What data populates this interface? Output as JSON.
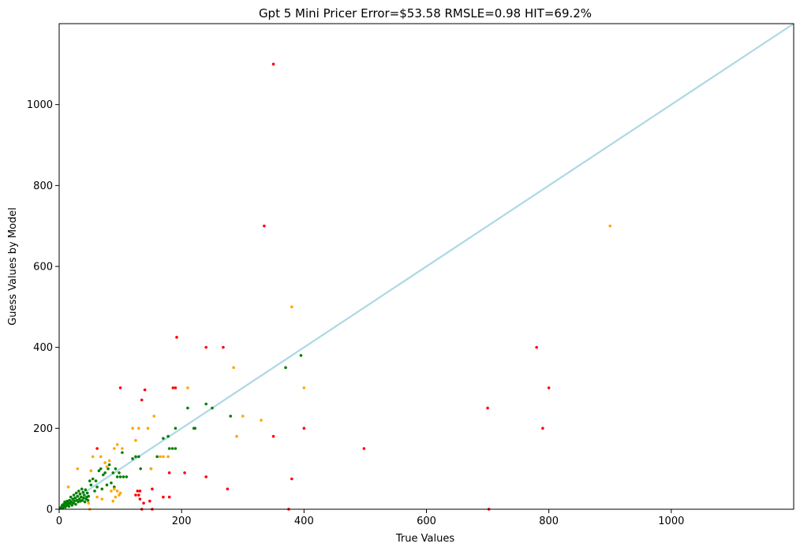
{
  "chart_data": {
    "type": "scatter",
    "title": "Gpt 5 Mini Pricer Error=$53.58  RMSLE=0.98  HIT=69.2%",
    "xlabel": "True Values",
    "ylabel": "Guess Values by Model",
    "xlim": [
      0,
      1200
    ],
    "ylim": [
      0,
      1200
    ],
    "xticks": [
      0,
      200,
      400,
      600,
      800,
      1000
    ],
    "yticks": [
      0,
      200,
      400,
      600,
      800,
      1000
    ],
    "grid": false,
    "reference_line": {
      "from": [
        0,
        0
      ],
      "to": [
        1200,
        1200
      ],
      "color": "#add8e6"
    },
    "colors": {
      "green": "#008000",
      "orange": "#ffa500",
      "red": "#ff0000"
    },
    "series": [
      {
        "color": "green",
        "points": [
          [
            2,
            3
          ],
          [
            4,
            6
          ],
          [
            5,
            10
          ],
          [
            6,
            4
          ],
          [
            7,
            12
          ],
          [
            8,
            8
          ],
          [
            9,
            18
          ],
          [
            10,
            5
          ],
          [
            11,
            14
          ],
          [
            12,
            9
          ],
          [
            13,
            20
          ],
          [
            14,
            12
          ],
          [
            15,
            16
          ],
          [
            16,
            7
          ],
          [
            17,
            22
          ],
          [
            18,
            14
          ],
          [
            19,
            30
          ],
          [
            20,
            18
          ],
          [
            21,
            10
          ],
          [
            22,
            25
          ],
          [
            23,
            15
          ],
          [
            24,
            35
          ],
          [
            25,
            20
          ],
          [
            26,
            28
          ],
          [
            27,
            12
          ],
          [
            28,
            40
          ],
          [
            29,
            22
          ],
          [
            30,
            32
          ],
          [
            31,
            18
          ],
          [
            32,
            45
          ],
          [
            33,
            25
          ],
          [
            34,
            38
          ],
          [
            35,
            20
          ],
          [
            36,
            30
          ],
          [
            37,
            50
          ],
          [
            38,
            22
          ],
          [
            39,
            42
          ],
          [
            40,
            28
          ],
          [
            41,
            35
          ],
          [
            42,
            18
          ],
          [
            43,
            48
          ],
          [
            44,
            25
          ],
          [
            45,
            30
          ],
          [
            46,
            40
          ],
          [
            47,
            22
          ],
          [
            48,
            32
          ],
          [
            50,
            70
          ],
          [
            52,
            60
          ],
          [
            55,
            75
          ],
          [
            58,
            45
          ],
          [
            60,
            70
          ],
          [
            62,
            55
          ],
          [
            65,
            95
          ],
          [
            68,
            100
          ],
          [
            70,
            50
          ],
          [
            72,
            85
          ],
          [
            75,
            90
          ],
          [
            78,
            60
          ],
          [
            80,
            100
          ],
          [
            82,
            110
          ],
          [
            85,
            65
          ],
          [
            88,
            90
          ],
          [
            90,
            55
          ],
          [
            92,
            100
          ],
          [
            95,
            80
          ],
          [
            98,
            90
          ],
          [
            100,
            80
          ],
          [
            103,
            140
          ],
          [
            105,
            80
          ],
          [
            110,
            80
          ],
          [
            120,
            125
          ],
          [
            125,
            130
          ],
          [
            130,
            130
          ],
          [
            133,
            100
          ],
          [
            150,
            100
          ],
          [
            160,
            130
          ],
          [
            170,
            175
          ],
          [
            178,
            180
          ],
          [
            180,
            150
          ],
          [
            185,
            150
          ],
          [
            190,
            150
          ],
          [
            190,
            200
          ],
          [
            210,
            250
          ],
          [
            220,
            200
          ],
          [
            222,
            200
          ],
          [
            240,
            260
          ],
          [
            250,
            250
          ],
          [
            280,
            230
          ],
          [
            370,
            350
          ],
          [
            395,
            380
          ]
        ]
      },
      {
        "color": "orange",
        "points": [
          [
            15,
            55
          ],
          [
            30,
            100
          ],
          [
            48,
            15
          ],
          [
            50,
            0
          ],
          [
            52,
            95
          ],
          [
            55,
            130
          ],
          [
            62,
            30
          ],
          [
            68,
            130
          ],
          [
            70,
            25
          ],
          [
            75,
            115
          ],
          [
            78,
            105
          ],
          [
            82,
            120
          ],
          [
            85,
            45
          ],
          [
            88,
            20
          ],
          [
            90,
            50
          ],
          [
            90,
            150
          ],
          [
            92,
            30
          ],
          [
            95,
            160
          ],
          [
            95,
            45
          ],
          [
            98,
            35
          ],
          [
            100,
            40
          ],
          [
            103,
            150
          ],
          [
            120,
            200
          ],
          [
            125,
            170
          ],
          [
            130,
            200
          ],
          [
            145,
            200
          ],
          [
            150,
            100
          ],
          [
            155,
            230
          ],
          [
            165,
            130
          ],
          [
            170,
            130
          ],
          [
            178,
            130
          ],
          [
            210,
            300
          ],
          [
            285,
            350
          ],
          [
            290,
            180
          ],
          [
            300,
            230
          ],
          [
            330,
            220
          ],
          [
            380,
            500
          ],
          [
            400,
            300
          ],
          [
            900,
            700
          ]
        ]
      },
      {
        "color": "red",
        "points": [
          [
            62,
            150
          ],
          [
            100,
            300
          ],
          [
            125,
            35
          ],
          [
            128,
            45
          ],
          [
            130,
            35
          ],
          [
            132,
            45
          ],
          [
            132,
            25
          ],
          [
            135,
            0
          ],
          [
            135,
            270
          ],
          [
            138,
            15
          ],
          [
            140,
            295
          ],
          [
            148,
            20
          ],
          [
            152,
            50
          ],
          [
            152,
            0
          ],
          [
            170,
            30
          ],
          [
            180,
            30
          ],
          [
            180,
            90
          ],
          [
            186,
            300
          ],
          [
            190,
            300
          ],
          [
            192,
            425
          ],
          [
            205,
            90
          ],
          [
            240,
            400
          ],
          [
            240,
            80
          ],
          [
            268,
            400
          ],
          [
            275,
            50
          ],
          [
            335,
            700
          ],
          [
            350,
            1100
          ],
          [
            350,
            180
          ],
          [
            375,
            0
          ],
          [
            380,
            75
          ],
          [
            400,
            200
          ],
          [
            498,
            150
          ],
          [
            700,
            250
          ],
          [
            702,
            0
          ],
          [
            780,
            400
          ],
          [
            790,
            200
          ],
          [
            800,
            300
          ]
        ]
      }
    ]
  }
}
